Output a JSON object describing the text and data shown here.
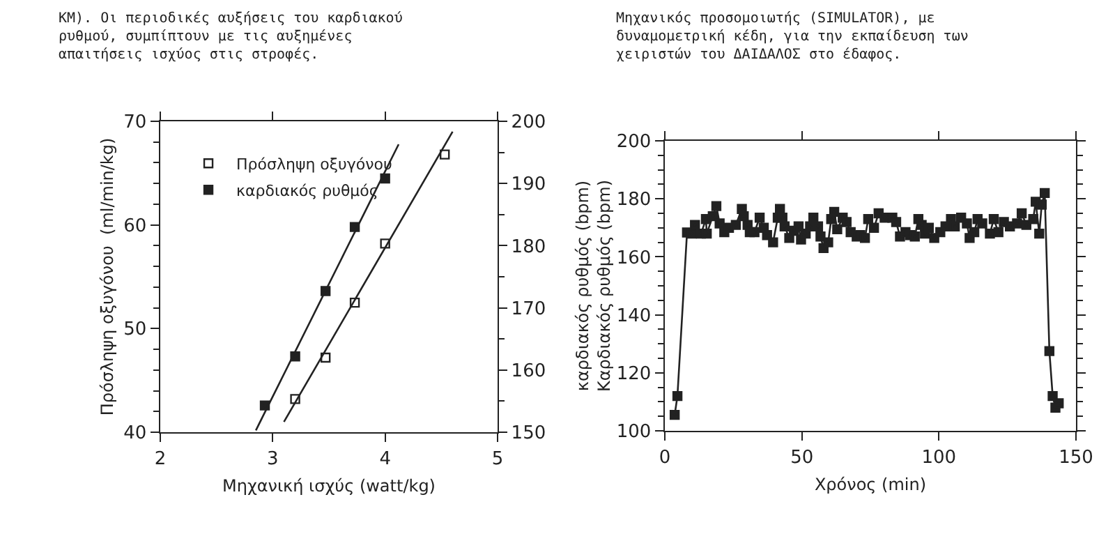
{
  "chart_data": [
    {
      "type": "scatter",
      "annotations": [
        "KM). Οι περιοδικές αυξήσεις του καρδιακού\nρυθμού, συμπίπτουν με τις αυξημένες\nαπαιτήσεις ισχύος στις στροφές."
      ],
      "xlabel": "Μηχανική ισχύς (watt/kg)",
      "ylabel": "Πρόσληψη οξυγόνου  (ml/min/kg)",
      "xlim": [
        2,
        5
      ],
      "xticks": [
        2,
        3,
        4,
        5
      ],
      "ylim": [
        40,
        70
      ],
      "yticks": [
        40,
        50,
        60,
        70
      ],
      "y2lim": [
        150,
        200
      ],
      "y2ticks": [
        150,
        160,
        170,
        180,
        190,
        200
      ],
      "grid": false,
      "legend": "top left",
      "series": [
        {
          "name": "Πρόσληψη οξυγόνου",
          "color": "#222222",
          "marker": "square-open",
          "x": [
            3.2,
            3.47,
            3.73,
            4.0,
            4.53
          ],
          "values": [
            43.2,
            47.2,
            52.5,
            58.2,
            66.8
          ]
        },
        {
          "name": "καρδιακός ρυθμός",
          "color": "#222222",
          "marker": "square",
          "axis": "y2",
          "x": [
            2.93,
            3.2,
            3.47,
            3.73,
            4.0
          ],
          "values": [
            154.3,
            162.2,
            172.7,
            183,
            190.8
          ]
        },
        {
          "type": "line",
          "color": "#222222",
          "marker": "none",
          "x": [
            3.1,
            4.6
          ],
          "values": [
            41,
            69
          ]
        },
        {
          "type": "line",
          "color": "#222222",
          "marker": "none",
          "axis": "y2",
          "x": [
            2.85,
            4.12
          ],
          "values": [
            150.3,
            196.3
          ]
        }
      ]
    },
    {
      "type": "line",
      "annotations": [
        "Μηχανικός προσομοιωτής (SIMULATOR), με\nδυναμομετρική κέδη, για την εκπαίδευση των\nχειριστών του ΔΑΙΔΑΛΟΣ στο έδαφος."
      ],
      "xlabel": "Χρόνος (min)",
      "ylabel": "καρδιακός ρυθμός (bpm)\nΚαρδιακός ρυθμός (bpm)",
      "xlim": [
        0,
        150
      ],
      "xticks": [
        0,
        50,
        100,
        150
      ],
      "ylim": [
        100,
        200
      ],
      "yticks": [
        100,
        120,
        140,
        160,
        180,
        200
      ],
      "grid": false,
      "legend": false,
      "marker": "square",
      "line_style": "solid",
      "series": [
        {
          "color": "#222222",
          "x": [
            3.6,
            4.6,
            8.1,
            9.8,
            11,
            13.2,
            15,
            15.3,
            17.5,
            18.8,
            20,
            21.7,
            23.4,
            25.9,
            28.1,
            28.8,
            30.2,
            31,
            32.7,
            34.6,
            36.1,
            37.3,
            39.5,
            41.2,
            42,
            42.9,
            43.7,
            45.4,
            47.1,
            48.8,
            49.7,
            51.4,
            53,
            54.2,
            55.9,
            56.8,
            57.9,
            59.6,
            60.7,
            61.8,
            62.9,
            64.9,
            66.3,
            67.8,
            70,
            71.3,
            73,
            74.2,
            76.3,
            78,
            80.2,
            83,
            84.4,
            85.8,
            87.8,
            89.5,
            91.2,
            92.5,
            93.7,
            94.9,
            96.3,
            98.3,
            100.5,
            102.4,
            104.4,
            105.8,
            108.1,
            110.2,
            111.2,
            112.9,
            114.1,
            115.8,
            118.6,
            120,
            121.7,
            123.7,
            125.9,
            128.5,
            130.2,
            131.9,
            134.4,
            135.3,
            136.6,
            137.5,
            138.6,
            140.3,
            141.5,
            142.5,
            143.7
          ],
          "values": [
            105.5,
            112,
            168.4,
            168,
            171,
            168,
            173,
            168,
            174,
            177.5,
            171.5,
            168.5,
            170,
            171,
            176.5,
            174,
            171,
            168.5,
            168.5,
            173.5,
            170,
            167.5,
            165,
            173.5,
            176.5,
            173.5,
            170.5,
            166.5,
            169,
            170.5,
            166,
            168,
            170.5,
            173.5,
            170.5,
            167,
            163,
            165,
            173,
            175.5,
            169.5,
            173.5,
            172,
            168.5,
            167,
            167.5,
            166.5,
            173,
            170,
            175,
            173.5,
            173.5,
            172,
            167,
            168.5,
            167.5,
            167,
            173,
            171,
            168,
            170,
            166.5,
            168.5,
            170.5,
            173,
            170.5,
            173.5,
            171.5,
            166.5,
            168.5,
            173,
            171.5,
            168,
            173,
            168.5,
            172,
            170.5,
            171.5,
            175,
            171,
            173,
            179,
            168,
            178,
            182,
            127.5,
            112,
            108,
            109.5
          ]
        }
      ]
    }
  ]
}
